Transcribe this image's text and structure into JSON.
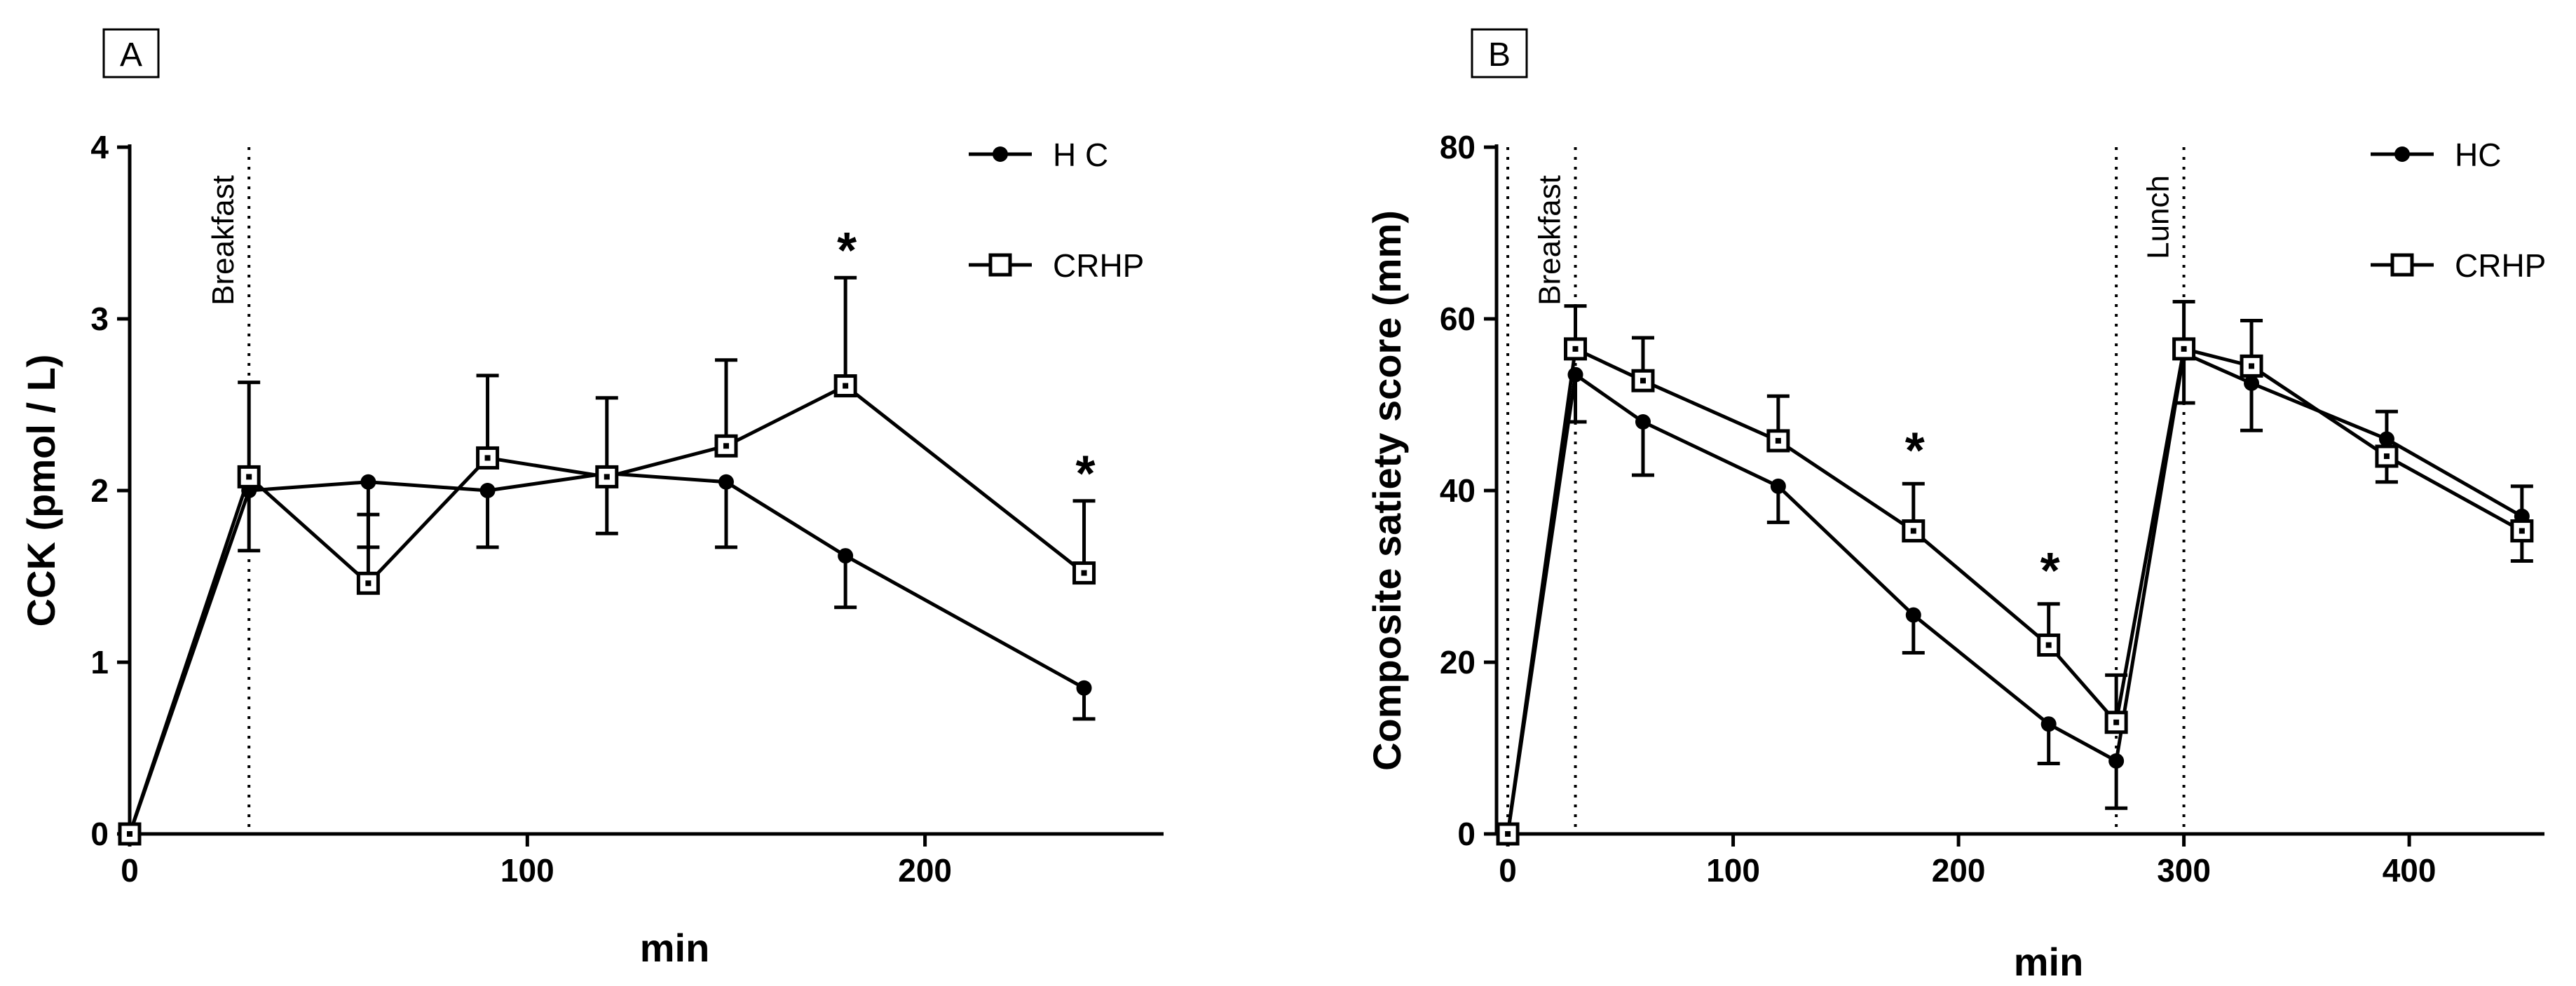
{
  "chart_data": [
    {
      "type": "line",
      "panel_label": "A",
      "xlabel": "min",
      "ylabel": "CCK (pmol / L)",
      "xlim": [
        0,
        260
      ],
      "ylim": [
        0,
        4
      ],
      "xticks": [
        0,
        100,
        200
      ],
      "yticks": [
        0,
        1,
        2,
        3,
        4
      ],
      "legend_position": "top-right",
      "vlines": [
        {
          "x": 30,
          "label": "Breakfast"
        }
      ],
      "series": [
        {
          "name": "H C",
          "marker": "filled-circle",
          "x": [
            0,
            30,
            60,
            90,
            120,
            150,
            180,
            240
          ],
          "y": [
            0,
            2.0,
            2.05,
            2.0,
            2.1,
            2.05,
            1.62,
            0.85
          ],
          "err": [
            0,
            0.35,
            0.38,
            0.33,
            0.35,
            0.38,
            0.3,
            0.18
          ]
        },
        {
          "name": "CRHP",
          "marker": "open-square",
          "x": [
            0,
            30,
            60,
            90,
            120,
            150,
            180,
            240
          ],
          "y": [
            0,
            2.08,
            1.46,
            2.19,
            2.08,
            2.26,
            2.61,
            1.52
          ],
          "err": [
            0,
            0.55,
            0.4,
            0.48,
            0.46,
            0.5,
            0.63,
            0.42
          ]
        }
      ],
      "annotations": [
        {
          "x": 180,
          "y": 3.24,
          "text": "*"
        },
        {
          "x": 240,
          "y": 1.94,
          "text": "*"
        }
      ]
    },
    {
      "type": "line",
      "panel_label": "B",
      "xlabel": "min",
      "ylabel": "Composite satiety score (mm)",
      "xlim": [
        -5,
        460
      ],
      "ylim": [
        0,
        80
      ],
      "xticks": [
        0,
        100,
        200,
        300,
        400
      ],
      "yticks": [
        0,
        20,
        40,
        60,
        80
      ],
      "legend_position": "top-right",
      "vlines": [
        {
          "x": 0,
          "label": ""
        },
        {
          "x": 30,
          "label": "Breakfast"
        },
        {
          "x": 270,
          "label": ""
        },
        {
          "x": 300,
          "label": "Lunch"
        }
      ],
      "series": [
        {
          "name": "HC",
          "marker": "filled-circle",
          "x": [
            0,
            30,
            60,
            120,
            180,
            240,
            270,
            300,
            330,
            390,
            450
          ],
          "y": [
            0,
            53.5,
            48,
            40.5,
            25.5,
            12.8,
            8.5,
            56,
            52.5,
            46,
            37
          ],
          "err": [
            0,
            5.5,
            6.2,
            4.2,
            4.4,
            4.6,
            5.5,
            5.8,
            5.5,
            5,
            5.2
          ]
        },
        {
          "name": "CRHP",
          "marker": "open-square",
          "x": [
            0,
            30,
            60,
            120,
            180,
            240,
            270,
            300,
            330,
            390,
            450
          ],
          "y": [
            0,
            56.5,
            52.8,
            45.8,
            35.3,
            22,
            13,
            56.5,
            54.5,
            44,
            35.3
          ],
          "err": [
            0,
            5,
            5,
            5.2,
            5.5,
            4.8,
            5.5,
            5.5,
            5.3,
            5.2,
            5.2
          ]
        }
      ],
      "annotations": [
        {
          "x": 180,
          "y": 41.5,
          "text": "*"
        },
        {
          "x": 240,
          "y": 27.5,
          "text": "*"
        }
      ]
    }
  ]
}
